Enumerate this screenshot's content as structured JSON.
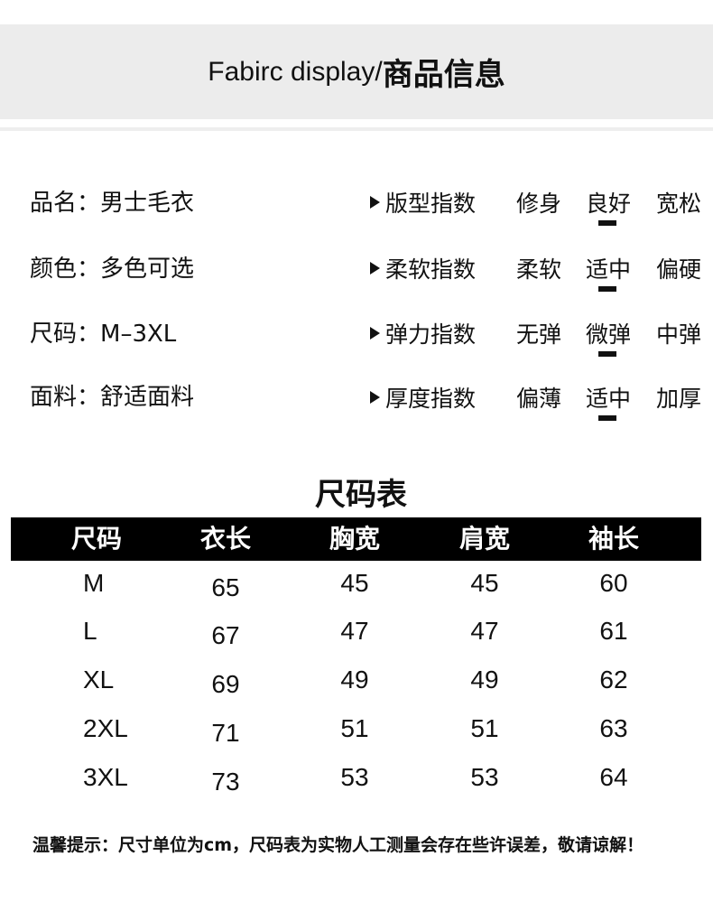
{
  "header": {
    "title_en": "Fabirc display/",
    "title_cn": "商品信息"
  },
  "info": [
    {
      "label": "品名：",
      "value": "男士毛衣"
    },
    {
      "label": "颜色：",
      "value": "多色可选"
    },
    {
      "label": "尺码：",
      "value": "M–3XL"
    },
    {
      "label": "面料：",
      "value": "舒适面料"
    }
  ],
  "indices": [
    {
      "name": "版型指数",
      "options": [
        "修身",
        "良好",
        "宽松"
      ],
      "selected": 1
    },
    {
      "name": "柔软指数",
      "options": [
        "柔软",
        "适中",
        "偏硬"
      ],
      "selected": 1
    },
    {
      "name": "弹力指数",
      "options": [
        "无弹",
        "微弹",
        "中弹"
      ],
      "selected": 1
    },
    {
      "name": "厚度指数",
      "options": [
        "偏薄",
        "适中",
        "加厚"
      ],
      "selected": 1
    }
  ],
  "size_table": {
    "title": "尺码表",
    "headers": [
      "尺码",
      "衣长",
      "胸宽",
      "肩宽",
      "袖长"
    ],
    "rows": [
      [
        "M",
        "65",
        "45",
        "45",
        "60"
      ],
      [
        "L",
        "67",
        "47",
        "47",
        "61"
      ],
      [
        "XL",
        "69",
        "49",
        "49",
        "62"
      ],
      [
        "2XL",
        "71",
        "51",
        "51",
        "63"
      ],
      [
        "3XL",
        "73",
        "53",
        "53",
        "64"
      ]
    ]
  },
  "note": "温馨提示：尺寸单位为cm，尺码表为实物人工测量会存在些许误差，敬请谅解！"
}
